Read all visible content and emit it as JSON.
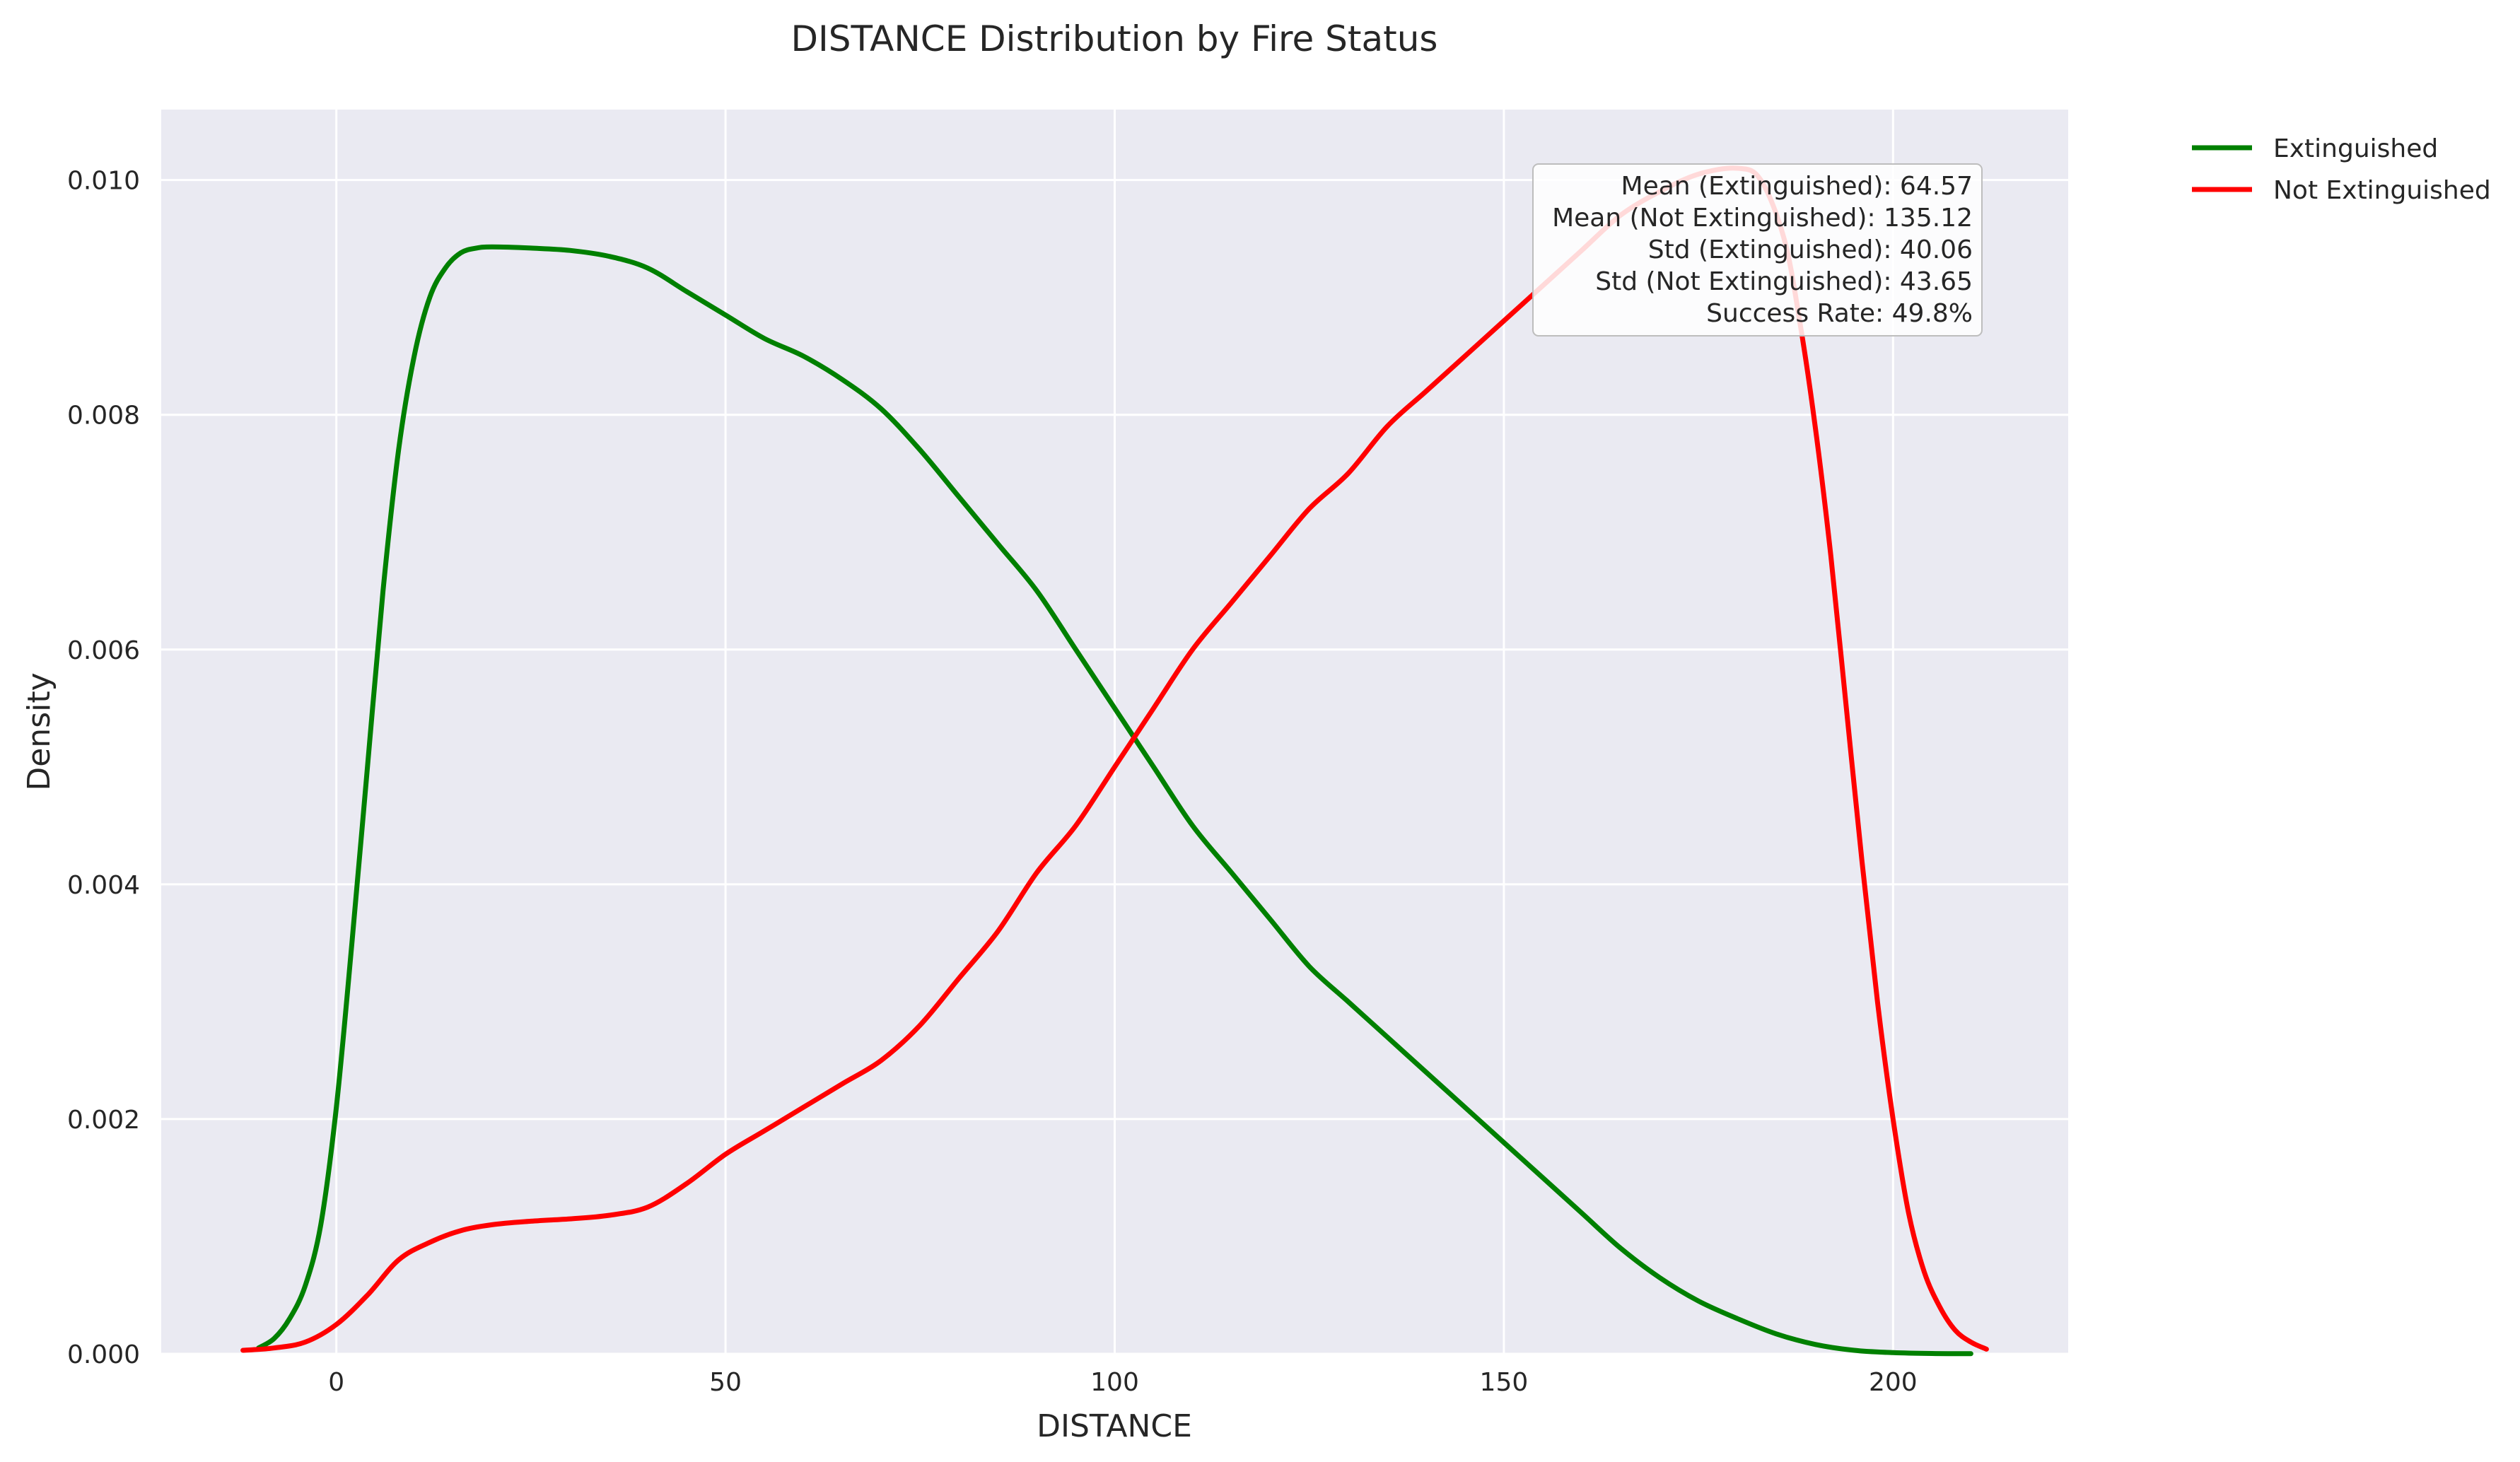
{
  "chart_data": {
    "type": "line",
    "title": "DISTANCE Distribution by Fire Status",
    "xlabel": "DISTANCE",
    "ylabel": "Density",
    "xlim": [
      -22.5,
      222.5
    ],
    "ylim": [
      0,
      0.0106
    ],
    "xticks": [
      0,
      50,
      100,
      150,
      200
    ],
    "xtick_labels": [
      "0",
      "50",
      "100",
      "150",
      "200"
    ],
    "yticks": [
      0,
      0.002,
      0.004,
      0.006,
      0.008,
      0.01
    ],
    "ytick_labels": [
      "0.000",
      "0.002",
      "0.004",
      "0.006",
      "0.008",
      "0.010"
    ],
    "grid": true,
    "legend_position": "outside-top-right",
    "colors": {
      "background": "#eaeaf2",
      "grid": "#ffffff",
      "Extinguished": "#008000",
      "Not Extinguished": "#ff0000"
    },
    "series": [
      {
        "name": "Extinguished",
        "x": [
          -10,
          -8,
          -6,
          -4,
          -2,
          0,
          2,
          4,
          6,
          8,
          10,
          12,
          14,
          16,
          18,
          20,
          25,
          30,
          35,
          40,
          45,
          50,
          55,
          60,
          65,
          70,
          75,
          80,
          85,
          90,
          95,
          100,
          105,
          110,
          115,
          120,
          125,
          130,
          135,
          140,
          145,
          150,
          155,
          160,
          165,
          170,
          175,
          180,
          185,
          190,
          195,
          200,
          205,
          210
        ],
        "y": [
          5e-05,
          0.00013,
          0.0003,
          0.00058,
          0.0011,
          0.0021,
          0.0035,
          0.005,
          0.0065,
          0.0077,
          0.0085,
          0.009,
          0.00925,
          0.00938,
          0.00942,
          0.00943,
          0.00942,
          0.0094,
          0.00935,
          0.00925,
          0.00905,
          0.00885,
          0.00865,
          0.0085,
          0.0083,
          0.00805,
          0.0077,
          0.0073,
          0.0069,
          0.0065,
          0.006,
          0.0055,
          0.005,
          0.0045,
          0.0041,
          0.0037,
          0.0033,
          0.003,
          0.0027,
          0.0024,
          0.0021,
          0.0018,
          0.0015,
          0.0012,
          0.0009,
          0.00065,
          0.00045,
          0.0003,
          0.00017,
          8e-05,
          3e-05,
          1e-05,
          3e-06,
          1e-06
        ]
      },
      {
        "name": "Not Extinguished",
        "x": [
          -12,
          -8,
          -4,
          0,
          4,
          8,
          12,
          16,
          20,
          25,
          30,
          35,
          40,
          45,
          50,
          55,
          60,
          65,
          70,
          75,
          80,
          85,
          90,
          95,
          100,
          105,
          110,
          115,
          120,
          125,
          130,
          135,
          140,
          145,
          150,
          155,
          160,
          165,
          170,
          175,
          180,
          183,
          186,
          188,
          190,
          192,
          194,
          196,
          198,
          200,
          202,
          204,
          206,
          208,
          210,
          212
        ],
        "y": [
          3e-05,
          5e-05,
          0.0001,
          0.00025,
          0.0005,
          0.0008,
          0.00095,
          0.00105,
          0.0011,
          0.00113,
          0.00115,
          0.00118,
          0.00125,
          0.00145,
          0.0017,
          0.0019,
          0.0021,
          0.0023,
          0.0025,
          0.0028,
          0.0032,
          0.0036,
          0.0041,
          0.0045,
          0.005,
          0.0055,
          0.006,
          0.0064,
          0.0068,
          0.0072,
          0.0075,
          0.0079,
          0.0082,
          0.0085,
          0.0088,
          0.0091,
          0.0094,
          0.0097,
          0.0099,
          0.01005,
          0.0101,
          0.01,
          0.0095,
          0.0088,
          0.0079,
          0.0068,
          0.0055,
          0.0042,
          0.003,
          0.002,
          0.0012,
          0.0007,
          0.0004,
          0.0002,
          0.0001,
          4e-05
        ]
      }
    ],
    "annotation": [
      "Mean (Extinguished): 64.57",
      "Mean (Not Extinguished): 135.12",
      "Std (Extinguished): 40.06",
      "Std (Not Extinguished): 43.65",
      "Success Rate: 49.8%"
    ]
  }
}
